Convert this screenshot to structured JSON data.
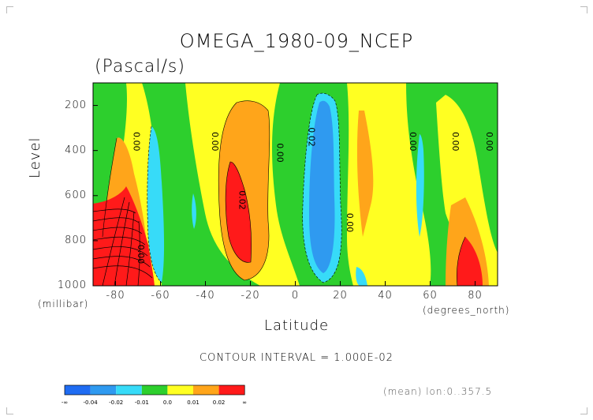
{
  "page": {
    "title": "OMEGA_1980-09_NCEP",
    "units": "(Pascal/s)",
    "contour_interval": "CONTOUR INTERVAL = 1.000E-02",
    "mean_note": "(mean) lon:0..357.5",
    "y_unit": "(millibar)",
    "x_unit": "(degrees_north)"
  },
  "chart_data": {
    "type": "heatmap",
    "title": "OMEGA_1980-09_NCEP",
    "subtitle": "(Pascal/s)",
    "xlabel": "Latitude",
    "ylabel": "Level",
    "xlim": [
      -90,
      90
    ],
    "ylim": [
      1000,
      100
    ],
    "x_ticks": [
      -80,
      -60,
      -40,
      -20,
      0,
      20,
      40,
      60,
      80
    ],
    "y_ticks": [
      200,
      400,
      600,
      800,
      1000
    ],
    "contour_labels": [
      {
        "text": "0.00",
        "x": -72,
        "y": 360
      },
      {
        "text": "0.00",
        "x": -37,
        "y": 360
      },
      {
        "text": "0.00",
        "x": -8,
        "y": 410
      },
      {
        "text": "0.02",
        "x": 6,
        "y": 340
      },
      {
        "text": "0.00",
        "x": 51,
        "y": 360
      },
      {
        "text": "0.00",
        "x": 70,
        "y": 360
      },
      {
        "text": "0.00",
        "x": 85,
        "y": 360
      },
      {
        "text": "0.02",
        "x": -25,
        "y": 620
      },
      {
        "text": "0.00",
        "x": 23,
        "y": 720
      },
      {
        "text": "0.00",
        "x": -70,
        "y": 860
      }
    ],
    "colorbar": {
      "levels": [
        "-∞",
        "-0.04",
        "-0.02",
        "-0.01",
        "0.0",
        "0.01",
        "0.02",
        "∞"
      ],
      "colors": [
        "#1f6cf2",
        "#2f9af0",
        "#37dbf8",
        "#2dcf2d",
        "#ffff22",
        "#ffa51a",
        "#ff1a1a"
      ]
    },
    "fields": {
      "blue": "#2f9af0",
      "cyan": "#37dbf8",
      "green": "#2dcf2d",
      "yellow": "#ffff22",
      "orange": "#ffa51a",
      "red": "#ff1a1a"
    },
    "grid": false
  }
}
